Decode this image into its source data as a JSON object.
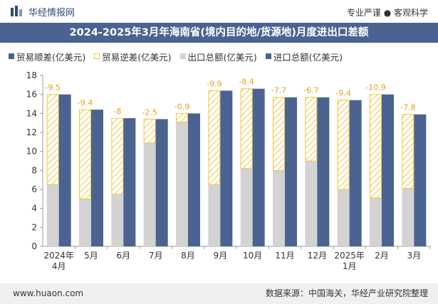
{
  "header": {
    "brand": "华经情报网",
    "tagline": "专业严谨 ● 客观科学",
    "title": "2024-2025年3月年海南省(境内目的地/货源地)月度进出口差额"
  },
  "legend": {
    "items": [
      "贸易顺差(亿美元)",
      "贸易逆差(亿美元)",
      "出口总额(亿美元)",
      "进口总额(亿美元)"
    ]
  },
  "chart_data": {
    "type": "bar",
    "categories": [
      "2024年\n4月",
      "5月",
      "6月",
      "7月",
      "8月",
      "9月",
      "10月",
      "11月",
      "12月",
      "2025年\n1月",
      "2月",
      "3月"
    ],
    "series": [
      {
        "name": "出口总额(亿美元)",
        "values": [
          6.5,
          5.0,
          5.5,
          10.9,
          13.1,
          6.5,
          8.2,
          8.0,
          9.0,
          6.0,
          5.1,
          6.1
        ]
      },
      {
        "name": "进口总额(亿美元)",
        "values": [
          16.0,
          14.4,
          13.5,
          13.4,
          14.0,
          16.4,
          16.6,
          15.7,
          15.7,
          15.4,
          16.0,
          13.9
        ]
      },
      {
        "name": "贸易逆差(亿美元)",
        "values": [
          -9.5,
          -9.4,
          -8,
          -2.5,
          -0.9,
          -9.9,
          -8.4,
          -7.7,
          -6.7,
          -9.4,
          -10.9,
          -7.8
        ]
      }
    ],
    "data_labels": [
      "-9.5",
      "-9.4",
      "-8",
      "-2.5",
      "-0.9",
      "-9.9",
      "-8.4",
      "-7.7",
      "-6.7",
      "-9.4",
      "-10.9",
      "-7.8"
    ],
    "ylim": [
      0,
      18
    ],
    "yticks": [
      0,
      2,
      4,
      6,
      8,
      10,
      12,
      14,
      16,
      18
    ],
    "grid": false,
    "legend_position": "top-left",
    "colors": {
      "export": "#d3d3d3",
      "import": "#4a6391",
      "deficit_stroke": "#f2c73d",
      "label": "#e8a317"
    }
  },
  "footer": {
    "url": "www.huaon.com",
    "source": "数据来源：中国海关，华经产业研究院整理"
  }
}
